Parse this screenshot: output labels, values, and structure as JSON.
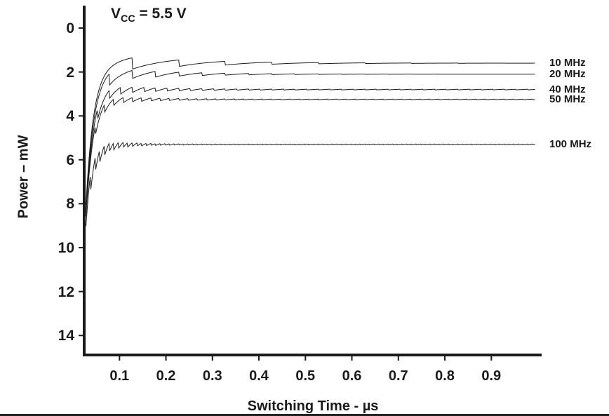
{
  "chart": {
    "annotation": {
      "v": "V",
      "sub": "CC",
      "eq": " = 5.5 V"
    },
    "ylabel": "Power – mW",
    "xlabel": "Switching Time - µs",
    "y_ticks": [
      "0",
      "2",
      "4",
      "6",
      "8",
      "10",
      "12",
      "14"
    ],
    "x_ticks": [
      "0.1",
      "0.2",
      "0.3",
      "0.4",
      "0.5",
      "0.6",
      "0.7",
      "0.8",
      "0.9"
    ],
    "line_color": "#1a1a1a",
    "text_color": "#1a1a1a"
  },
  "chart_data": {
    "type": "line",
    "title": "VCC = 5.5 V",
    "xlabel": "Switching Time - µs",
    "ylabel": "Power – mW",
    "xlim": [
      0,
      1.0
    ],
    "ylim": [
      0,
      14
    ],
    "y_axis_note": "y axis inverted on plot: 0 mW at top, 14 mW at bottom",
    "grid": false,
    "legend_position": "right of plot, one label per curve at its steady-state level",
    "transient_tau_us": 0.016,
    "curve_start_us": 0.028,
    "series": [
      {
        "name": "10 MHz",
        "frequency_mhz": 10,
        "steady_state_mw": 1.6,
        "start_mw": 7.6,
        "ripple_mw": 0.45,
        "ripple_decay_us": 0.18,
        "residual_mw": 0
      },
      {
        "name": "20 MHz",
        "frequency_mhz": 20,
        "steady_state_mw": 2.1,
        "start_mw": 7.9,
        "ripple_mw": 0.38,
        "ripple_decay_us": 0.14,
        "residual_mw": 0
      },
      {
        "name": "40 MHz",
        "frequency_mhz": 40,
        "steady_state_mw": 2.8,
        "start_mw": 8.1,
        "ripple_mw": 0.3,
        "ripple_decay_us": 0.1,
        "residual_mw": 0.015
      },
      {
        "name": "50 MHz",
        "frequency_mhz": 50,
        "steady_state_mw": 3.25,
        "start_mw": 8.3,
        "ripple_mw": 0.26,
        "ripple_decay_us": 0.09,
        "residual_mw": 0.015
      },
      {
        "name": "100 MHz",
        "frequency_mhz": 100,
        "steady_state_mw": 5.3,
        "start_mw": 8.5,
        "ripple_mw": 0.5,
        "ripple_decay_us": 0.05,
        "residual_mw": 0.02
      }
    ]
  }
}
